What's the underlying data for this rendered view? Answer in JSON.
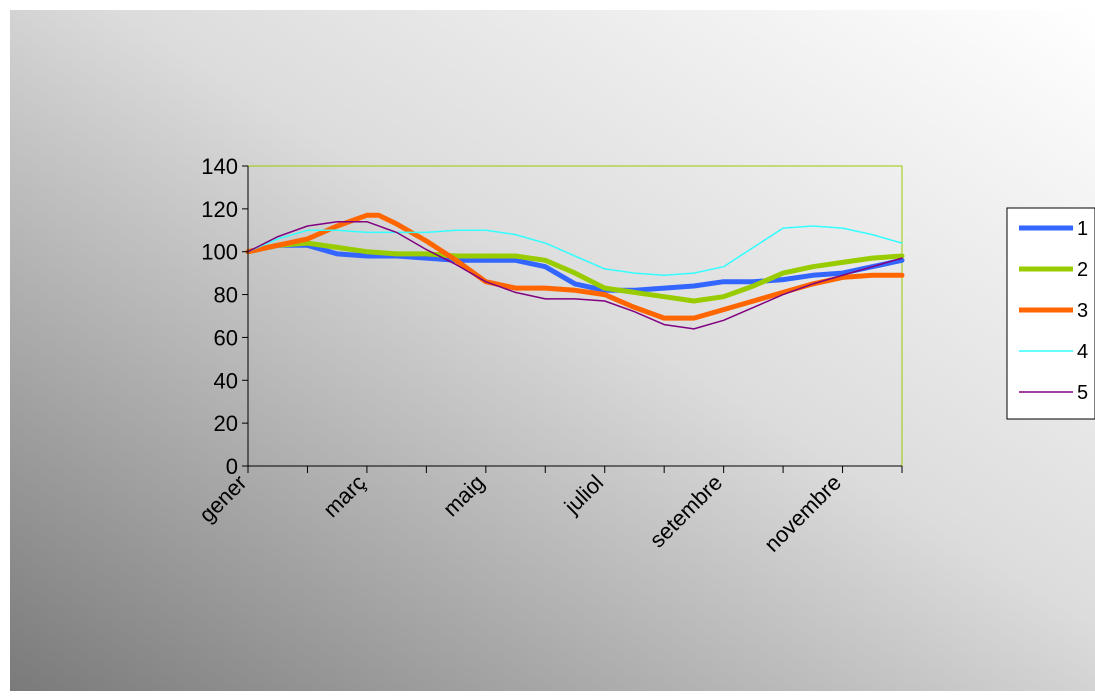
{
  "chart_data": {
    "type": "line",
    "title": "",
    "xlabel": "",
    "ylabel": "",
    "ylim": [
      0,
      140
    ],
    "y_ticks": [
      "0",
      "20",
      "40",
      "60",
      "80",
      "100",
      "120",
      "140"
    ],
    "x_tick_labels": [
      "gener",
      "març",
      "maig",
      "juliol",
      "setembre",
      "novembre"
    ],
    "x_tick_label_positions": [
      1,
      3,
      5,
      7,
      9,
      11
    ],
    "x_range": [
      1,
      12
    ],
    "grid": false,
    "legend_position": "right",
    "plot_border_color": "#99cc00",
    "background": "gradient-gray",
    "series": [
      {
        "name": "1",
        "color": "#3366ff",
        "width": "thick",
        "x": [
          1,
          1.5,
          2,
          2.5,
          3,
          3.5,
          4,
          4.5,
          5,
          5.5,
          6,
          6.5,
          7,
          7.5,
          8,
          8.5,
          9,
          9.5,
          10,
          10.5,
          11,
          11.5,
          12
        ],
        "values": [
          100,
          103,
          103,
          99,
          98,
          98,
          97,
          96,
          96,
          96,
          93,
          85,
          82,
          82,
          83,
          84,
          86,
          86,
          87,
          89,
          90,
          93,
          96
        ]
      },
      {
        "name": "2",
        "color": "#99cc00",
        "width": "thick",
        "x": [
          1,
          1.5,
          2,
          2.5,
          3,
          3.5,
          4,
          4.5,
          5,
          5.5,
          6,
          6.5,
          7,
          7.5,
          8,
          8.5,
          9,
          9.5,
          10,
          10.5,
          11,
          11.5,
          12
        ],
        "values": [
          100,
          103,
          104,
          102,
          100,
          99,
          99,
          98,
          98,
          98,
          96,
          90,
          83,
          81,
          79,
          77,
          79,
          84,
          90,
          93,
          95,
          97,
          98
        ]
      },
      {
        "name": "3",
        "color": "#ff6600",
        "width": "thick",
        "x": [
          1,
          1.5,
          2,
          2.5,
          3,
          3.2,
          3.5,
          4,
          4.5,
          5,
          5.5,
          6,
          6.5,
          7,
          7.5,
          8,
          8.5,
          9,
          9.5,
          10,
          10.5,
          11,
          11.5,
          12
        ],
        "values": [
          100,
          103,
          106,
          112,
          117,
          117,
          113,
          105,
          96,
          86,
          83,
          83,
          82,
          80,
          74,
          69,
          69,
          73,
          77,
          81,
          85,
          88,
          89,
          89
        ]
      },
      {
        "name": "4",
        "color": "#33ffff",
        "width": "thin",
        "x": [
          1,
          1.5,
          2,
          2.5,
          3,
          3.5,
          4,
          4.5,
          5,
          5.5,
          6,
          6.5,
          7,
          7.5,
          8,
          8.5,
          9,
          9.5,
          10,
          10.5,
          11,
          11.5,
          12
        ],
        "values": [
          100,
          106,
          110,
          110,
          109,
          109,
          109,
          110,
          110,
          108,
          104,
          98,
          92,
          90,
          89,
          90,
          93,
          102,
          111,
          112,
          111,
          108,
          104
        ]
      },
      {
        "name": "5",
        "color": "#800080",
        "width": "thin",
        "x": [
          1,
          1.5,
          2,
          2.5,
          3,
          3.5,
          4,
          4.5,
          5,
          5.5,
          6,
          6.5,
          7,
          7.5,
          8,
          8.5,
          9,
          9.5,
          10,
          10.5,
          11,
          11.5,
          12
        ],
        "values": [
          100,
          107,
          112,
          114,
          114,
          109,
          101,
          94,
          86,
          81,
          78,
          78,
          77,
          72,
          66,
          64,
          68,
          74,
          80,
          85,
          89,
          93,
          97
        ]
      }
    ]
  }
}
